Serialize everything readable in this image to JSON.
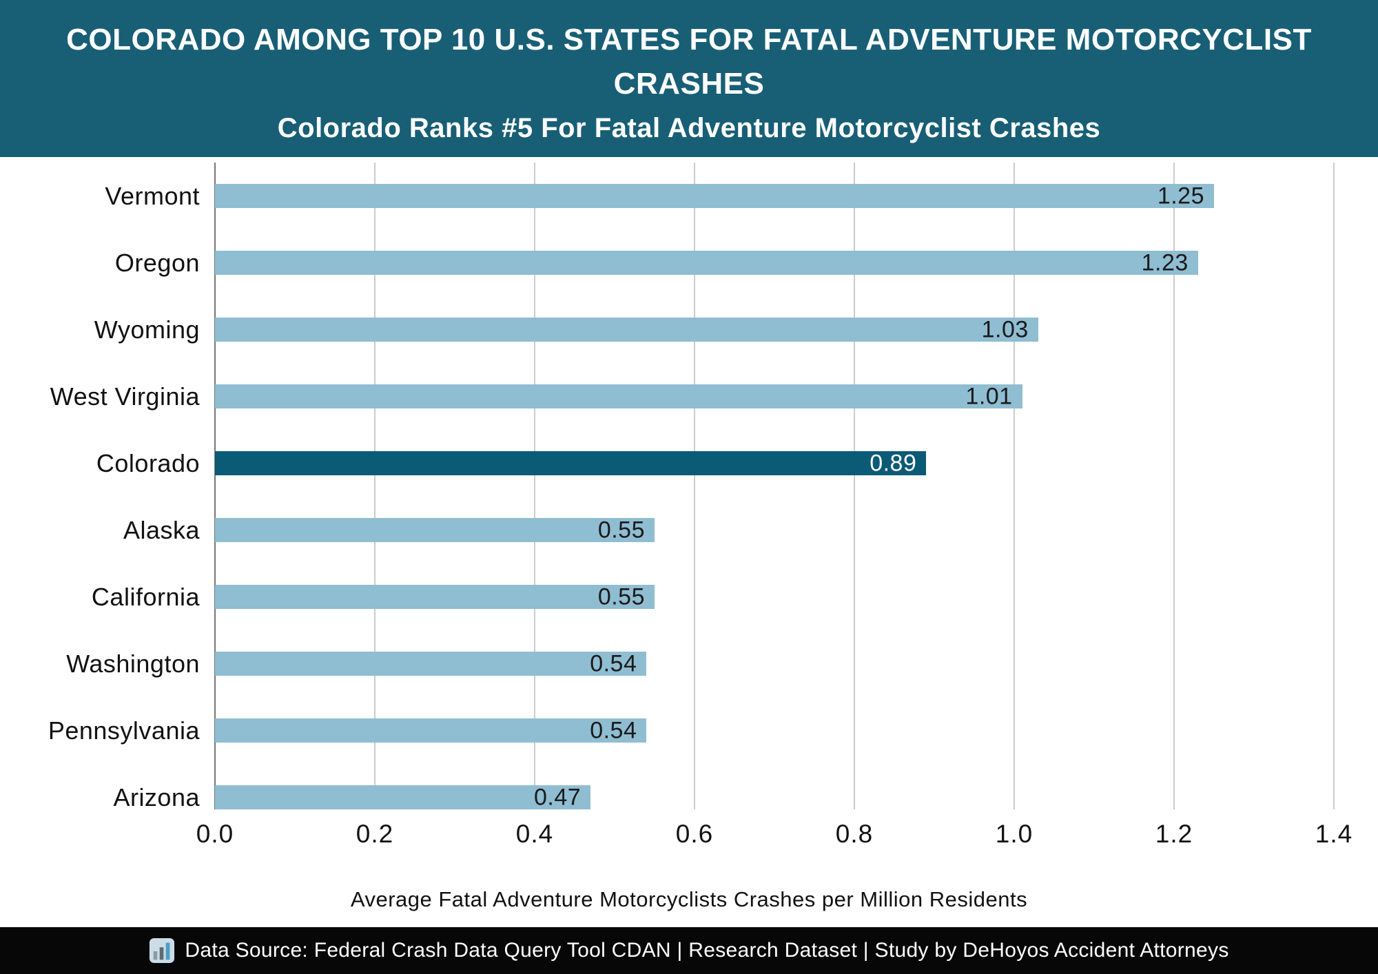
{
  "header": {
    "title": "COLORADO AMONG TOP 10 U.S. STATES FOR FATAL ADVENTURE MOTORCYCLIST CRASHES",
    "subtitle": "Colorado Ranks #5 For Fatal Adventure Motorcyclist Crashes",
    "background_color": "#185f76",
    "text_color": "#ffffff"
  },
  "chart_data": {
    "type": "bar",
    "orientation": "horizontal",
    "categories": [
      "Vermont",
      "Oregon",
      "Wyoming",
      "West Virginia",
      "Colorado",
      "Alaska",
      "California",
      "Washington",
      "Pennsylvania",
      "Arizona"
    ],
    "values": [
      1.25,
      1.23,
      1.03,
      1.01,
      0.89,
      0.55,
      0.55,
      0.54,
      0.54,
      0.47
    ],
    "value_labels": [
      "1.25",
      "1.23",
      "1.03",
      "1.01",
      "0.89",
      "0.55",
      "0.55",
      "0.54",
      "0.54",
      "0.47"
    ],
    "highlighted_category": "Colorado",
    "xlabel": "Average Fatal Adventure Motorcyclists Crashes per Million Residents",
    "xlim": [
      0,
      1.4
    ],
    "x_ticks": [
      "0.0",
      "0.2",
      "0.4",
      "0.6",
      "0.8",
      "1.0",
      "1.2",
      "1.4"
    ],
    "grid": "vertical",
    "legend": "none",
    "bar_color": "#8fbdd2",
    "highlight_bar_color": "#0b5a76",
    "value_label_color": "#1a1a1a",
    "highlight_value_label_color": "#ffffff",
    "grid_color": "#cbcbcb",
    "axis_line_color": "#767676"
  },
  "footer": {
    "icon": "bar-chart-icon",
    "text": "Data Source: Federal Crash Data Query Tool CDAN | Research Dataset | Study by DeHoyos Accident Attorneys",
    "background_color": "#070707",
    "text_color": "#ffffff"
  }
}
